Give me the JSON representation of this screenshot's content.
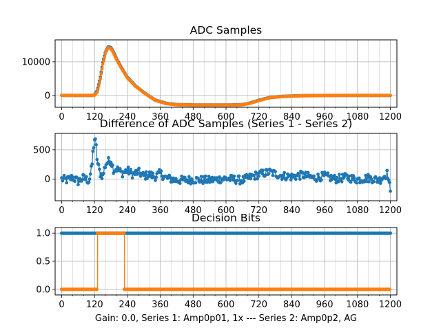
{
  "colors": {
    "series1": "#1f77b4",
    "series2": "#ff7f0e",
    "grid": "#b0b0b0"
  },
  "xlabel": "Gain: 0.0, Series 1: Amp0p01, 1x --- Series 2: Amp0p2, AG",
  "chart_data": [
    {
      "type": "line",
      "title": "ADC Samples",
      "xlim": [
        -24,
        1224
      ],
      "ylim": [
        -3500,
        16500
      ],
      "x_major_ticks": [
        0,
        120,
        240,
        360,
        480,
        600,
        720,
        840,
        960,
        1080,
        1200
      ],
      "x_major_tick_labels": [
        "0",
        "120",
        "240",
        "360",
        "480",
        "600",
        "720",
        "840",
        "960",
        "1080",
        "1200"
      ],
      "x_minor_step": 40,
      "y_ticks": [
        0,
        10000
      ],
      "y_tick_labels": [
        "0",
        "10000"
      ],
      "grid": true,
      "series": [
        {
          "name": "Series 1",
          "x": [
            0,
            60,
            110,
            120,
            130,
            140,
            150,
            160,
            170,
            180,
            190,
            200,
            220,
            240,
            270,
            300,
            340,
            380,
            420,
            480,
            560,
            620,
            660,
            690,
            720,
            760,
            800,
            840,
            900,
            960,
            1020,
            1080,
            1140,
            1200
          ],
          "y": [
            0,
            0,
            0,
            200,
            1500,
            5000,
            9800,
            13000,
            14500,
            14200,
            12800,
            11000,
            8000,
            5400,
            2800,
            900,
            -1300,
            -2300,
            -2700,
            -2800,
            -2800,
            -2800,
            -2700,
            -2200,
            -1400,
            -600,
            -300,
            -150,
            -50,
            0,
            0,
            0,
            0,
            0
          ]
        },
        {
          "name": "Series 2",
          "x": [
            0,
            60,
            110,
            120,
            130,
            140,
            150,
            160,
            170,
            180,
            190,
            200,
            220,
            240,
            270,
            300,
            340,
            380,
            420,
            480,
            560,
            620,
            660,
            690,
            720,
            760,
            800,
            840,
            900,
            960,
            1020,
            1080,
            1140,
            1200
          ],
          "y": [
            0,
            0,
            0,
            100,
            1000,
            4500,
            9300,
            12700,
            14200,
            13900,
            12500,
            10700,
            7800,
            5200,
            2700,
            800,
            -1400,
            -2400,
            -2750,
            -2850,
            -2850,
            -2850,
            -2750,
            -2300,
            -1500,
            -700,
            -350,
            -200,
            -80,
            -20,
            0,
            0,
            0,
            0
          ]
        }
      ]
    },
    {
      "type": "line",
      "title": "Difference of ADC Samples (Series 1 - Series 2)",
      "xlim": [
        -24,
        1224
      ],
      "ylim": [
        -370,
        780
      ],
      "x_major_ticks": [
        0,
        120,
        240,
        360,
        480,
        600,
        720,
        840,
        960,
        1080,
        1200
      ],
      "x_major_tick_labels": [
        "0",
        "120",
        "240",
        "360",
        "480",
        "600",
        "720",
        "840",
        "960",
        "1080",
        "1200"
      ],
      "x_minor_step": 40,
      "y_ticks": [
        0,
        500
      ],
      "y_tick_labels": [
        "0",
        "500"
      ],
      "grid": true,
      "series": [
        {
          "name": "Series 1 - Series 2",
          "x": [
            0,
            20,
            40,
            60,
            80,
            100,
            110,
            115,
            120,
            125,
            130,
            140,
            150,
            160,
            170,
            180,
            190,
            200,
            220,
            240,
            260,
            280,
            300,
            320,
            340,
            360,
            380,
            420,
            480,
            540,
            600,
            660,
            700,
            720,
            760,
            800,
            840,
            880,
            920,
            960,
            1000,
            1040,
            1080,
            1120,
            1160,
            1190,
            1198,
            1200
          ],
          "y": [
            0,
            -20,
            30,
            -40,
            20,
            -30,
            200,
            500,
            680,
            600,
            300,
            100,
            50,
            250,
            300,
            320,
            150,
            180,
            100,
            150,
            80,
            120,
            50,
            80,
            40,
            100,
            20,
            -20,
            -10,
            -20,
            10,
            -20,
            50,
            80,
            120,
            60,
            40,
            70,
            20,
            50,
            0,
            30,
            -10,
            20,
            -20,
            100,
            -150,
            -250
          ],
          "noise": 70
        }
      ]
    },
    {
      "type": "step",
      "title": "Decision Bits",
      "xlim": [
        -24,
        1224
      ],
      "ylim": [
        -0.1,
        1.1
      ],
      "x_major_ticks": [
        0,
        120,
        240,
        360,
        480,
        600,
        720,
        840,
        960,
        1080,
        1200
      ],
      "x_major_tick_labels": [
        "0",
        "120",
        "240",
        "360",
        "480",
        "600",
        "720",
        "840",
        "960",
        "1080",
        "1200"
      ],
      "x_minor_step": 40,
      "y_ticks": [
        0.0,
        0.5,
        1.0
      ],
      "y_tick_labels": [
        "0.0",
        "0.5",
        "1.0"
      ],
      "grid": true,
      "series": [
        {
          "name": "Series 1",
          "segments": [
            [
              0,
              1200,
              1
            ]
          ]
        },
        {
          "name": "Series 2",
          "segments": [
            [
              0,
              131,
              0
            ],
            [
              131,
              229,
              1
            ],
            [
              229,
              1200,
              0
            ]
          ]
        }
      ]
    }
  ]
}
